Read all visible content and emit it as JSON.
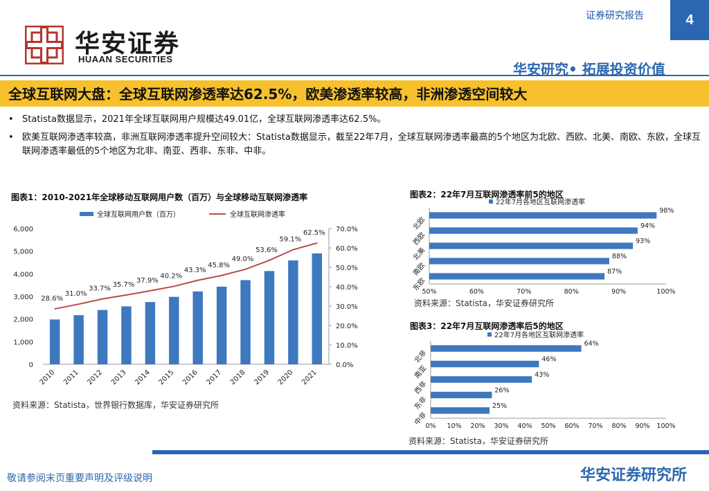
{
  "header": {
    "logo_cn": "华安证券",
    "logo_en": "HUAAN SECURITIES",
    "report_type": "证券研究报告",
    "page_number": "4",
    "slogan": "华安研究• 拓展投资价值"
  },
  "title": "全球互联网大盘：全球互联网渗透率达62.5%，欧美渗透率较高，非洲渗透空间较大",
  "bullets": [
    "Statista数据显示，2021年全球互联网用户规模达49.01亿，全球互联网渗透率达62.5%。",
    "欧美互联网渗透率较高，非洲互联网渗透率提升空间较大：Statista数据显示，截至22年7月，全球互联网渗透率最高的5个地区为北欧、西欧、北美、南欧、东欧，全球互联网渗透率最低的5个地区为北非、南亚、西非、东非、中非。"
  ],
  "bullet_marker": "•",
  "chart1": {
    "caption": "图表1：2010-2021年全球移动互联网用户数（百万）与全球移动互联网渗透率",
    "source": "资料来源：Statista，世界银行数据库，华安证券研究所"
  },
  "chart2": {
    "caption": "图表2：22年7月互联网渗透率前5的地区",
    "source": "资料来源：Statista，华安证券研究所"
  },
  "chart3": {
    "caption": "图表3：22年7月互联网渗透率后5的地区",
    "source": "资料来源：Statista，华安证券研究所"
  },
  "chart_data": [
    {
      "type": "bar+line",
      "categories": [
        "2010",
        "2011",
        "2012",
        "2013",
        "2014",
        "2015",
        "2016",
        "2017",
        "2018",
        "2019",
        "2020",
        "2021"
      ],
      "series": [
        {
          "name": "全球互联网用户数（百万）",
          "kind": "bar",
          "axis": "left",
          "values": [
            1980,
            2170,
            2400,
            2560,
            2750,
            2980,
            3220,
            3430,
            3720,
            4120,
            4590,
            4901
          ]
        },
        {
          "name": "全球互联网渗透率",
          "kind": "line",
          "axis": "right",
          "values": [
            28.6,
            31.0,
            33.7,
            35.7,
            37.9,
            40.2,
            43.3,
            45.8,
            49.0,
            53.6,
            59.1,
            62.5
          ],
          "labels": [
            "28.6%",
            "31.0%",
            "33.7%",
            "35.7%",
            "37.9%",
            "40.2%",
            "43.3%",
            "45.8%",
            "49.0%",
            "53.6%",
            "59.1%",
            "62.5%"
          ]
        }
      ],
      "left_axis": {
        "min": 0,
        "max": 6000,
        "ticks": [
          0,
          1000,
          2000,
          3000,
          4000,
          5000,
          6000
        ],
        "tick_labels": [
          "0",
          "1,000",
          "2,000",
          "3,000",
          "4,000",
          "5,000",
          "6,000"
        ]
      },
      "right_axis": {
        "min": 0,
        "max": 70,
        "ticks": [
          0,
          10,
          20,
          30,
          40,
          50,
          60,
          70
        ],
        "tick_labels": [
          "0.0%",
          "10.0%",
          "20.0%",
          "30.0%",
          "40.0%",
          "50.0%",
          "60.0%",
          "70.0%"
        ]
      },
      "legend": "top",
      "colors": {
        "bar": "#3e78be",
        "line": "#b94a48"
      }
    },
    {
      "type": "bar",
      "orientation": "horizontal",
      "legend_label": "22年7月各地区互联网渗透率",
      "categories": [
        "北欧",
        "西欧",
        "北美",
        "南欧",
        "东欧"
      ],
      "values": [
        98,
        94,
        93,
        88,
        87
      ],
      "value_labels": [
        "98%",
        "94%",
        "93%",
        "88%",
        "87%"
      ],
      "xlim": [
        50,
        100
      ],
      "ticks": [
        50,
        60,
        70,
        80,
        90,
        100
      ],
      "tick_labels": [
        "50%",
        "60%",
        "70%",
        "80%",
        "90%",
        "100%"
      ],
      "color": "#3e78be"
    },
    {
      "type": "bar",
      "orientation": "horizontal",
      "legend_label": "22年7月各地区互联网渗透率",
      "categories": [
        "北非",
        "南亚",
        "西非",
        "东非",
        "中非"
      ],
      "values": [
        64,
        46,
        43,
        26,
        25
      ],
      "value_labels": [
        "64%",
        "46%",
        "43%",
        "26%",
        "25%"
      ],
      "xlim": [
        0,
        100
      ],
      "ticks": [
        0,
        10,
        20,
        30,
        40,
        50,
        60,
        70,
        80,
        90,
        100
      ],
      "tick_labels": [
        "0%",
        "10%",
        "20%",
        "30%",
        "40%",
        "50%",
        "60%",
        "70%",
        "80%",
        "90%",
        "100%"
      ],
      "color": "#3e78be"
    }
  ],
  "footer": {
    "note": "敬请参阅末页重要声明及评级说明",
    "institution": "华安证券研究所"
  },
  "colors": {
    "brand_blue": "#2b67b1",
    "title_bar": "#f6c12d",
    "logo_red": "#b5342f"
  }
}
